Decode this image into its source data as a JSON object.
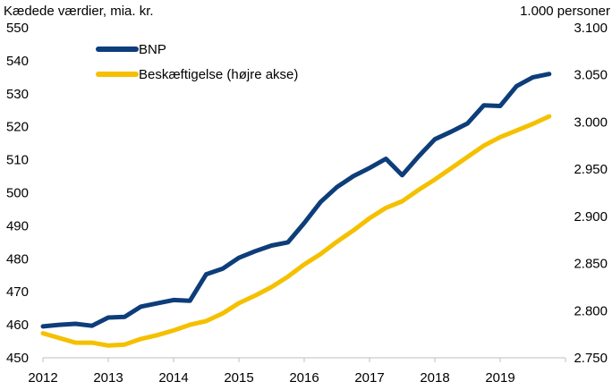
{
  "chart_data": {
    "type": "line",
    "title": "",
    "ylabel_left": "Kædede værdier, mia. kr.",
    "ylabel_right": "1.000 personer",
    "x_tick_labels": [
      "2012",
      "2013",
      "2014",
      "2015",
      "2016",
      "2017",
      "2018",
      "2019"
    ],
    "y_left_ticks": [
      "450",
      "460",
      "470",
      "480",
      "490",
      "500",
      "510",
      "520",
      "530",
      "540",
      "550"
    ],
    "y_right_ticks": [
      "2.750",
      "2.800",
      "2.850",
      "2.900",
      "2.950",
      "3.000",
      "3.050",
      "3.100"
    ],
    "ylim_left": [
      450,
      550
    ],
    "ylim_right": [
      2750,
      3100
    ],
    "xlim": [
      2012,
      2020
    ],
    "grid": "none",
    "legend_placement": "top-left",
    "x_quarters": [
      2012.0,
      2012.25,
      2012.5,
      2012.75,
      2013.0,
      2013.25,
      2013.5,
      2013.75,
      2014.0,
      2014.25,
      2014.5,
      2014.75,
      2015.0,
      2015.25,
      2015.5,
      2015.75,
      2016.0,
      2016.25,
      2016.5,
      2016.75,
      2017.0,
      2017.25,
      2017.5,
      2017.75,
      2018.0,
      2018.25,
      2018.5,
      2018.75,
      2019.0,
      2019.25,
      2019.5,
      2019.75
    ],
    "series": [
      {
        "name": "BNP",
        "axis": "left",
        "color": "#0d3d7a",
        "values": [
          459.5,
          460.0,
          460.3,
          459.7,
          462.2,
          462.4,
          465.5,
          466.5,
          467.5,
          467.3,
          475.3,
          477.0,
          480.3,
          482.3,
          484.0,
          485.0,
          490.8,
          497.2,
          501.7,
          505.0,
          507.5,
          510.3,
          505.3,
          511.0,
          516.2,
          518.5,
          521.0,
          526.5,
          526.3,
          532.3,
          535.0,
          536.0
        ]
      },
      {
        "name": "Beskæftigelse (højre akse)",
        "axis": "right",
        "color": "#f5c000",
        "values": [
          2776,
          2771,
          2766,
          2766,
          2763,
          2764,
          2770,
          2774,
          2779,
          2785,
          2789,
          2797,
          2808,
          2816,
          2825,
          2836,
          2849,
          2860,
          2873,
          2885,
          2898,
          2909,
          2916,
          2928,
          2939,
          2951,
          2963,
          2975,
          2984,
          2991,
          2998,
          3006
        ]
      }
    ]
  }
}
